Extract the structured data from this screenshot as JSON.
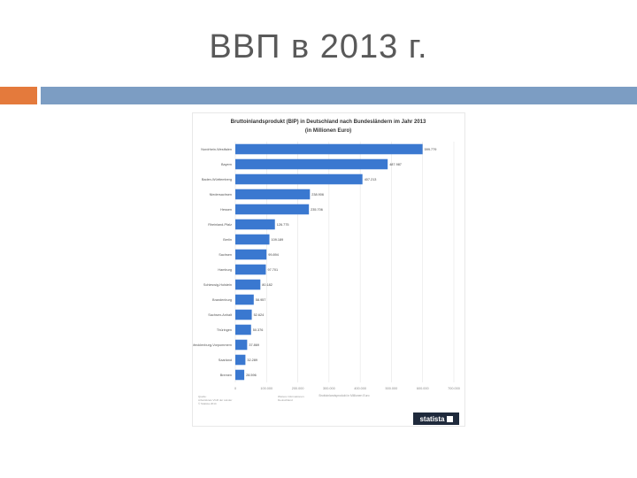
{
  "slide": {
    "title": "ВВП в 2013 г.",
    "accent_color": "#E47A3C",
    "bar_color": "#7C9DC3"
  },
  "chart_data": {
    "type": "bar",
    "orientation": "horizontal",
    "title": "Bruttoinlandsprodukt (BIP) in Deutschland nach Bundesländern im Jahr 2013",
    "subtitle": "(in Millionen Euro)",
    "categories": [
      "Nordrhein-Westfalen",
      "Bayern",
      "Baden-Württemberg",
      "Niedersachsen",
      "Hessen",
      "Rheinland-Pfalz",
      "Berlin",
      "Sachsen",
      "Hamburg",
      "Schleswig-Holstein",
      "Brandenburg",
      "Sachsen-Anhalt",
      "Thüringen",
      "Mecklenburg-Vorpommern",
      "Saarland",
      "Bremen"
    ],
    "values": [
      599779,
      487987,
      407213,
      238906,
      235706,
      126775,
      109189,
      99894,
      97701,
      80182,
      58957,
      52624,
      50376,
      37869,
      32289,
      28596
    ],
    "value_labels": [
      "599.779",
      "487.987",
      "407.213",
      "238.906",
      "235.706",
      "126.775",
      "109.189",
      "99.894",
      "97.701",
      "80.182",
      "58.957",
      "52.624",
      "50.376",
      "37.869",
      "32.289",
      "28.596"
    ],
    "xlim": [
      0,
      700000
    ],
    "ticks": [
      0,
      100000,
      200000,
      300000,
      400000,
      500000,
      600000,
      700000
    ],
    "tick_labels": [
      "0",
      "100.000",
      "200.000",
      "300.000",
      "400.000",
      "500.000",
      "600.000",
      "700.000"
    ],
    "xlabel": "Bruttoinlandsprodukt in Millionen Euro",
    "grid": true,
    "bar_color": "#3A78D0"
  },
  "footer": {
    "source_heading": "Quelle:",
    "source_text": "Arbeitskreis VGR der Länder",
    "source_id": "© Statista 2014",
    "info_heading": "Weitere Informationen:",
    "info_text": "Deutschland",
    "logo_text": "statista"
  }
}
